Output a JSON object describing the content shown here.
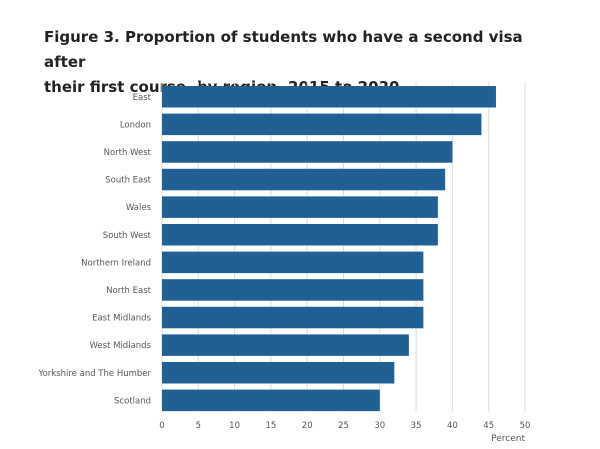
{
  "chart_data": {
    "type": "bar",
    "orientation": "horizontal",
    "title": "Figure 3. Proportion of students who have a second visa after their first course, by region, 2015 to 2020",
    "categories": [
      "East",
      "London",
      "North West",
      "South East",
      "Wales",
      "South West",
      "Northern Ireland",
      "North East",
      "East Midlands",
      "West Midlands",
      "Yorkshire and The Humber",
      "Scotland"
    ],
    "values": [
      46,
      44,
      40,
      39,
      38,
      38,
      36,
      36,
      36,
      34,
      32,
      30
    ],
    "xlabel": "Percent",
    "ylabel": "",
    "xlim": [
      0,
      50
    ],
    "x_ticks": [
      "0",
      "5",
      "10",
      "15",
      "20",
      "25",
      "30",
      "35",
      "40",
      "45",
      "50"
    ],
    "grid": "vertical",
    "legend": "none",
    "bar_color": "#206095",
    "grid_color": "#dddddd"
  }
}
